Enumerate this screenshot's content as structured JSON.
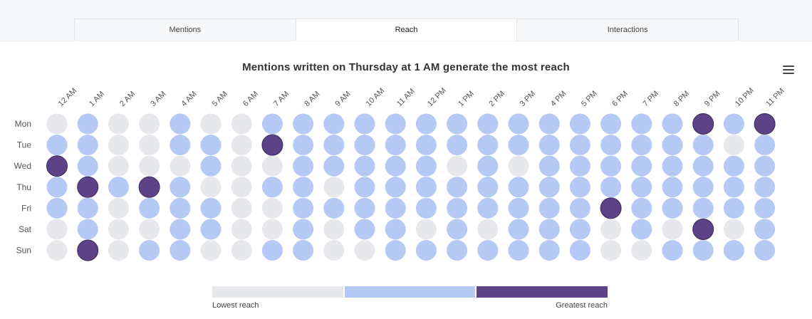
{
  "tabs": [
    {
      "label": "Mentions",
      "active": false
    },
    {
      "label": "Reach",
      "active": true
    },
    {
      "label": "Interactions",
      "active": false
    }
  ],
  "menu_icon": "hamburger-menu-icon",
  "chart_data": {
    "type": "heatmap",
    "title": "Mentions written on Thursday at 1 AM generate the most reach",
    "x_labels": [
      "12 AM",
      "1 AM",
      "2 AM",
      "3 AM",
      "4 AM",
      "5 AM",
      "6 AM",
      "7 AM",
      "8 AM",
      "9 AM",
      "10 AM",
      "11 AM",
      "12 PM",
      "1 PM",
      "2 PM",
      "3 PM",
      "4 PM",
      "5 PM",
      "6 PM",
      "7 PM",
      "8 PM",
      "9 PM",
      "10 PM",
      "11 PM"
    ],
    "y_labels": [
      "Mon",
      "Tue",
      "Wed",
      "Thu",
      "Fri",
      "Sat",
      "Sun"
    ],
    "levels": [
      "low",
      "medium",
      "high"
    ],
    "colors": {
      "low": "#e6e8ec",
      "medium": "#b6c8f4",
      "high": "#5e4287"
    },
    "values": [
      [
        0,
        1,
        0,
        0,
        1,
        0,
        0,
        1,
        1,
        1,
        1,
        1,
        1,
        1,
        1,
        1,
        1,
        1,
        1,
        1,
        1,
        2,
        1,
        2
      ],
      [
        1,
        1,
        0,
        0,
        1,
        1,
        0,
        2,
        1,
        1,
        1,
        1,
        1,
        1,
        1,
        1,
        1,
        1,
        1,
        1,
        1,
        1,
        0,
        1
      ],
      [
        2,
        1,
        0,
        0,
        0,
        1,
        0,
        0,
        1,
        1,
        1,
        1,
        1,
        0,
        1,
        0,
        1,
        1,
        1,
        1,
        1,
        1,
        1,
        1
      ],
      [
        1,
        2,
        1,
        2,
        1,
        0,
        0,
        1,
        1,
        0,
        1,
        1,
        1,
        1,
        1,
        1,
        1,
        1,
        1,
        1,
        1,
        1,
        1,
        1
      ],
      [
        1,
        1,
        0,
        1,
        1,
        1,
        0,
        0,
        1,
        1,
        1,
        1,
        1,
        1,
        1,
        1,
        1,
        1,
        2,
        1,
        1,
        1,
        1,
        1
      ],
      [
        0,
        1,
        0,
        0,
        1,
        1,
        0,
        0,
        1,
        0,
        1,
        1,
        0,
        1,
        0,
        1,
        1,
        1,
        0,
        1,
        0,
        2,
        0,
        1
      ],
      [
        0,
        2,
        0,
        1,
        1,
        0,
        0,
        1,
        1,
        0,
        0,
        1,
        1,
        1,
        1,
        1,
        1,
        1,
        0,
        0,
        1,
        1,
        1,
        1
      ]
    ],
    "legend": {
      "low_label": "Lowest reach",
      "high_label": "Greatest reach"
    }
  }
}
